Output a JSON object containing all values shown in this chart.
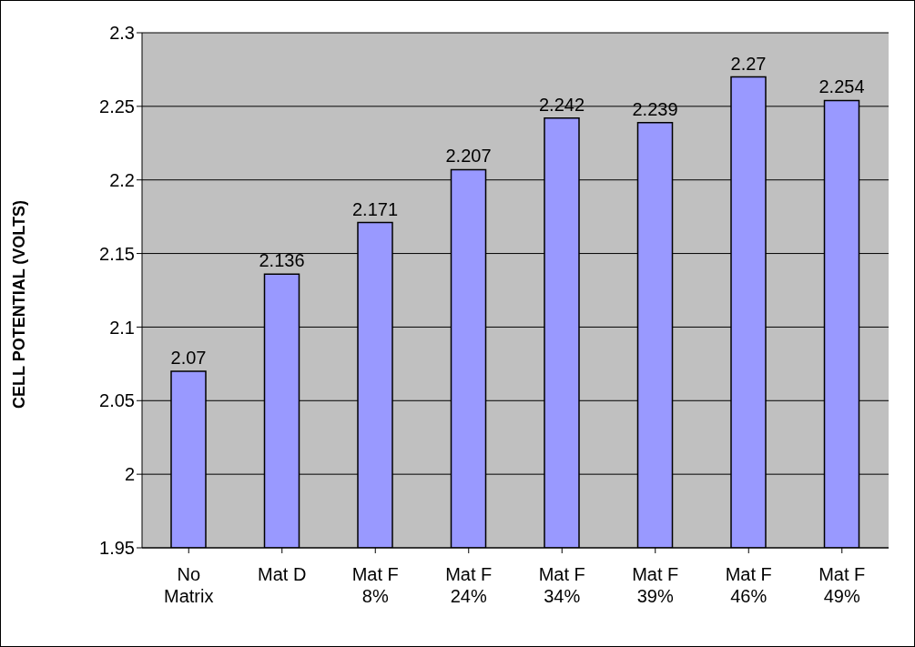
{
  "chart_data": {
    "type": "bar",
    "ylabel": "CELL POTENTIAL (VOLTS)",
    "categories": [
      "No Matrix",
      "Mat D",
      "Mat F 8%",
      "Mat F 24%",
      "Mat F 34%",
      "Mat F 39%",
      "Mat F 46%",
      "Mat F 49%"
    ],
    "values": [
      2.07,
      2.136,
      2.171,
      2.207,
      2.242,
      2.239,
      2.27,
      2.254
    ],
    "color": "#9999ff",
    "ylim": [
      1.95,
      2.3
    ],
    "yticks": [
      1.95,
      2,
      2.05,
      2.1,
      2.15,
      2.2,
      2.25,
      2.3
    ],
    "grid": "y",
    "data_labels": true,
    "legend": false
  }
}
